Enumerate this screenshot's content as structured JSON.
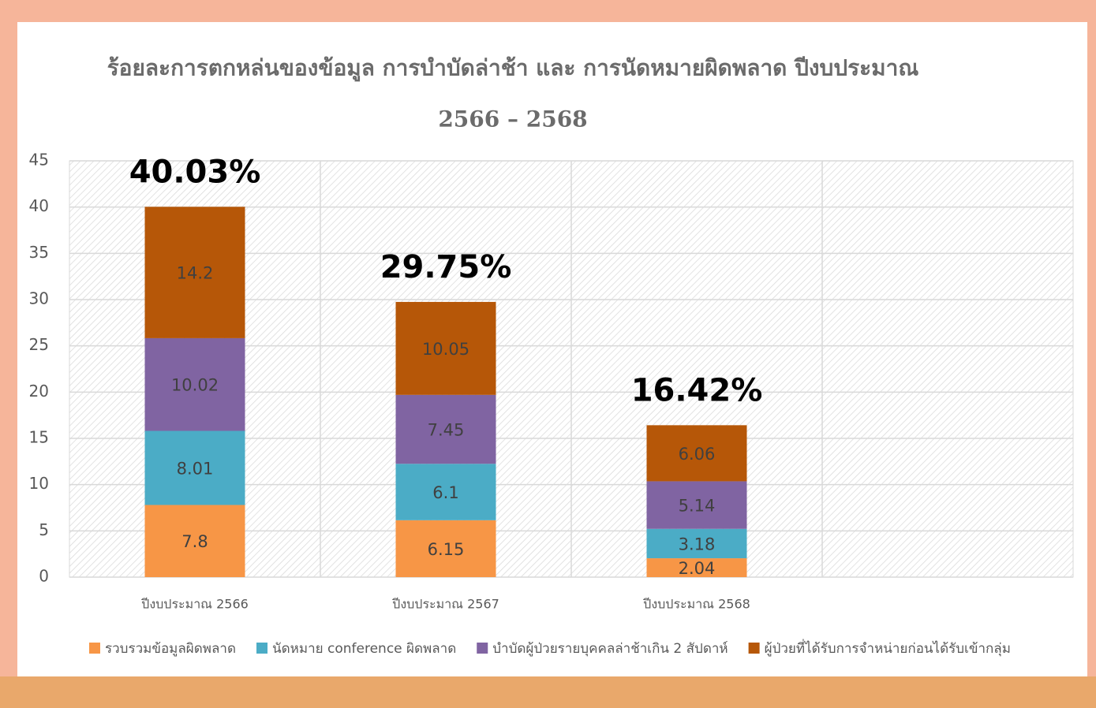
{
  "chart_data": {
    "type": "stacked_bar",
    "title": [
      "ร้อยละการตกหล่นของข้อมูล การบำบัดล่าช้า และ การนัดหมายผิดพลาด ปีงบประมาณ",
      "2566 – 2568"
    ],
    "categories": [
      "ปีงบประมาณ 2566",
      "ปีงบประมาณ 2567",
      "ปีงบประมาณ 2568",
      null
    ],
    "series": [
      {
        "name": "รวบรวมข้อมูลผิดพลาด",
        "color": "#f79646",
        "values": [
          7.8,
          6.15,
          2.04,
          null
        ]
      },
      {
        "name": "นัดหมาย conference ผิดพลาด",
        "color": "#4bacc6",
        "values": [
          8.01,
          6.1,
          3.18,
          null
        ]
      },
      {
        "name": "บำบัดผู้ป่วยรายบุคคลล่าช้าเกิน 2 สัปดาห์",
        "color": "#8064a2",
        "values": [
          10.02,
          7.45,
          5.14,
          null
        ]
      },
      {
        "name": "ผู้ป่วยที่ได้รับการจำหน่ายก่อนได้รับเข้ากลุ่ม",
        "color": "#b65708",
        "values": [
          14.2,
          10.05,
          6.06,
          null
        ]
      }
    ],
    "total_labels": [
      "40.03%",
      "29.75%",
      "16.42%",
      null
    ],
    "ylim": [
      0,
      45
    ],
    "yticks": [
      0,
      5,
      10,
      15,
      20,
      25,
      30,
      35,
      40,
      45
    ],
    "grid": true,
    "legend": "bottom"
  }
}
